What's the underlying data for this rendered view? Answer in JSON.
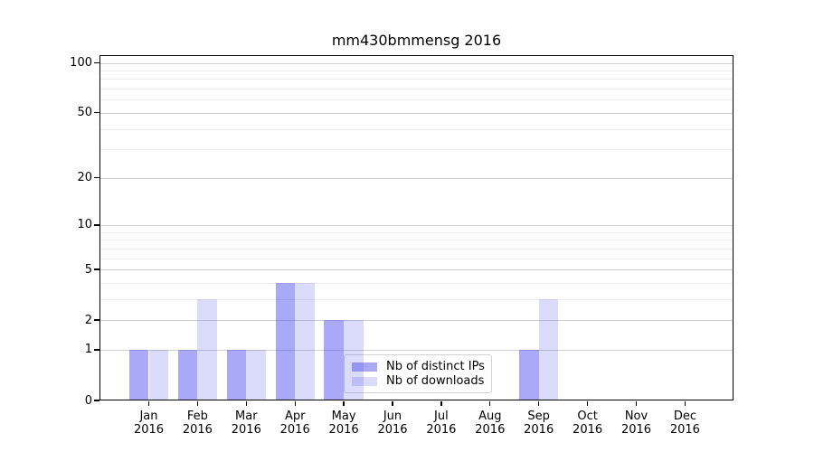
{
  "chart_data": {
    "type": "bar",
    "title": "mm430bmmensg 2016",
    "categories": [
      "Jan 2016",
      "Feb 2016",
      "Mar 2016",
      "Apr 2016",
      "May 2016",
      "Jun 2016",
      "Jul 2016",
      "Aug 2016",
      "Sep 2016",
      "Oct 2016",
      "Nov 2016",
      "Dec 2016"
    ],
    "x_tick_line1": [
      "Jan",
      "Feb",
      "Mar",
      "Apr",
      "May",
      "Jun",
      "Jul",
      "Aug",
      "Sep",
      "Oct",
      "Nov",
      "Dec"
    ],
    "x_tick_line2": [
      "2016",
      "2016",
      "2016",
      "2016",
      "2016",
      "2016",
      "2016",
      "2016",
      "2016",
      "2016",
      "2016",
      "2016"
    ],
    "series": [
      {
        "name": "Nb of distinct IPs",
        "color": "rgba(64,64,240,0.45)",
        "values": [
          1,
          1,
          1,
          4,
          2,
          0,
          0,
          0,
          1,
          0,
          0,
          0
        ]
      },
      {
        "name": "Nb of downloads",
        "color": "rgba(64,64,240,0.19)",
        "values": [
          1,
          3,
          1,
          4,
          2,
          0,
          0,
          0,
          3,
          0,
          0,
          0
        ]
      }
    ],
    "yscale": "log1p",
    "ylim": [
      0,
      100
    ],
    "yticks": [
      0,
      1,
      2,
      5,
      10,
      20,
      50,
      100
    ],
    "ytick_labels": [
      "0",
      "1",
      "2",
      "5",
      "10",
      "20",
      "50",
      "100"
    ],
    "minor_gridlines": [
      3,
      4,
      6,
      7,
      8,
      9,
      30,
      40,
      60,
      70,
      80,
      90
    ],
    "grid": true,
    "legend_position": "lower center",
    "colors": {
      "axis": "#000000",
      "grid_major": "#cfcfcf",
      "grid_minor": "#ededed"
    }
  }
}
